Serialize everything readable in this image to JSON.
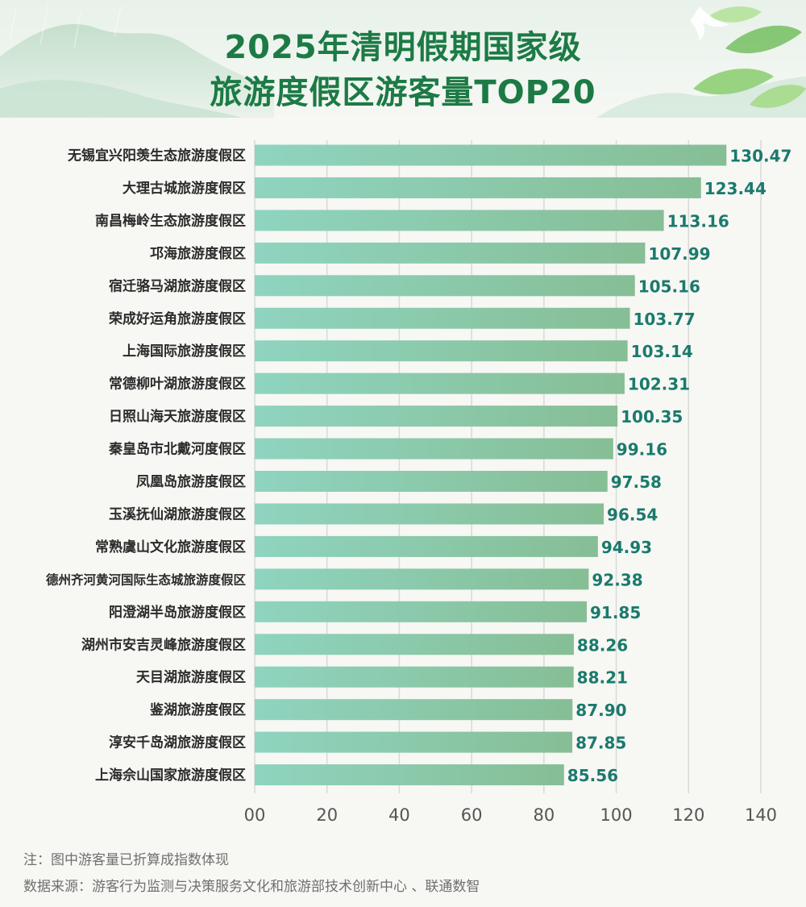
{
  "header": {
    "title_line1": "2025年清明假期国家级",
    "title_line2": "旅游度假区游客量TOP20"
  },
  "colors": {
    "bar_left": "#8fd4c0",
    "bar_right": "#86be95",
    "value_text": "#1a7a6c",
    "title": "#1c7a45",
    "grid": "#d9d9d9"
  },
  "chart_data": {
    "type": "bar",
    "orientation": "horizontal",
    "categories": [
      "无锡宜兴阳羡生态旅游度假区",
      "大理古城旅游度假区",
      "南昌梅岭生态旅游度假区",
      "邛海旅游度假区",
      "宿迁骆马湖旅游度假区",
      "荣成好运角旅游度假区",
      "上海国际旅游度假区",
      "常德柳叶湖旅游度假区",
      "日照山海天旅游度假区",
      "秦皇岛市北戴河度假区",
      "凤凰岛旅游度假区",
      "玉溪抚仙湖旅游度假区",
      "常熟虞山文化旅游度假区",
      "德州齐河黄河国际生态城旅游度假区",
      "阳澄湖半岛旅游度假区",
      "湖州市安吉灵峰旅游度假区",
      "天目湖旅游度假区",
      "鉴湖旅游度假区",
      "淳安千岛湖旅游度假区",
      "上海佘山国家旅游度假区"
    ],
    "values": [
      130.47,
      123.44,
      113.16,
      107.99,
      105.16,
      103.77,
      103.14,
      102.31,
      100.35,
      99.16,
      97.58,
      96.54,
      94.93,
      92.38,
      91.85,
      88.26,
      88.21,
      87.9,
      87.85,
      85.56
    ],
    "value_labels": [
      "130.47",
      "123.44",
      "113.16",
      "107.99",
      "105.16",
      "103.77",
      "103.14",
      "102.31",
      "100.35",
      "99.16",
      "97.58",
      "96.54",
      "94.93",
      "92.38",
      "91.85",
      "88.26",
      "88.21",
      "87.90",
      "87.85",
      "85.56"
    ],
    "x_ticks": [
      0,
      20,
      40,
      60,
      80,
      100,
      120,
      140
    ],
    "x_tick_labels": [
      "00",
      "20",
      "40",
      "60",
      "80",
      "100",
      "120",
      "140"
    ],
    "xlim": [
      0,
      140
    ],
    "grid": "vertical",
    "title": "2025年清明假期国家级旅游度假区游客量TOP20"
  },
  "notes": {
    "note": "注：图中游客量已折算成指数体现",
    "source": "数据来源：游客行为监测与决策服务文化和旅游部技术创新中心 、联通数智"
  }
}
